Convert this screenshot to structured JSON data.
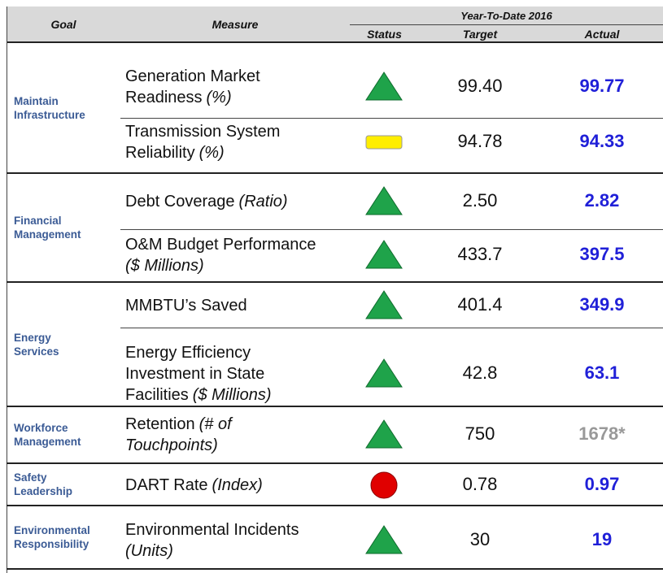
{
  "header": {
    "goal": "Goal",
    "measure": "Measure",
    "period": "Year-To-Date 2016",
    "status": "Status",
    "target": "Target",
    "actual": "Actual"
  },
  "goals": [
    {
      "label_lines": [
        "Maintain",
        "Infrastructure"
      ],
      "measures": [
        {
          "lines": [
            {
              "text": "Generation Market"
            },
            {
              "text": "Readiness",
              "unit": "(%)"
            }
          ],
          "status": "up",
          "target": "99.40",
          "actual": "99.77",
          "actual_color": "#2020d8"
        },
        {
          "lines": [
            {
              "text": "Transmission System"
            },
            {
              "text": "Reliability",
              "unit": "(%)"
            }
          ],
          "status": "caution",
          "target": "94.78",
          "actual": "94.33",
          "actual_color": "#2020d8"
        }
      ]
    },
    {
      "label_lines": [
        "Financial",
        "Management"
      ],
      "measures": [
        {
          "lines": [
            {
              "text": "Debt Coverage",
              "unit": "(Ratio)"
            }
          ],
          "status": "up",
          "target": "2.50",
          "actual": "2.82",
          "actual_color": "#2020d8"
        },
        {
          "lines": [
            {
              "text": "O&M Budget Performance"
            },
            {
              "unit": "($ Millions)"
            }
          ],
          "status": "up",
          "target": "433.7",
          "actual": "397.5",
          "actual_color": "#2020d8"
        }
      ]
    },
    {
      "label_lines": [
        "Energy",
        "Services"
      ],
      "measures": [
        {
          "lines": [
            {
              "text": "MMBTU’s Saved"
            }
          ],
          "status": "up",
          "target": "401.4",
          "actual": "349.9",
          "actual_color": "#2020d8"
        },
        {
          "lines": [
            {
              "text": "Energy Efficiency"
            },
            {
              "text": "Investment in State"
            },
            {
              "text": "Facilities",
              "unit": "($ Millions)"
            }
          ],
          "status": "up",
          "target": "42.8",
          "actual": "63.1",
          "actual_color": "#2020d8"
        }
      ]
    },
    {
      "label_lines": [
        "Workforce",
        "Management"
      ],
      "measures": [
        {
          "lines": [
            {
              "text": "Retention",
              "unit": "(# of"
            },
            {
              "unit": "Touchpoints)"
            }
          ],
          "status": "up",
          "target": "750",
          "actual": "1678*",
          "actual_color": "#999999"
        }
      ]
    },
    {
      "label_lines": [
        "Safety",
        "Leadership"
      ],
      "measures": [
        {
          "lines": [
            {
              "text": "DART Rate",
              "unit": "(Index)"
            }
          ],
          "status": "down",
          "target": "0.78",
          "actual": "0.97",
          "actual_color": "#2020d8"
        }
      ]
    },
    {
      "label_lines": [
        "Environmental",
        "Responsibility"
      ],
      "measures": [
        {
          "lines": [
            {
              "text": "Environmental Incidents"
            },
            {
              "unit": "(Units)"
            }
          ],
          "status": "up",
          "target": "30",
          "actual": "19",
          "actual_color": "#2020d8"
        }
      ]
    }
  ]
}
